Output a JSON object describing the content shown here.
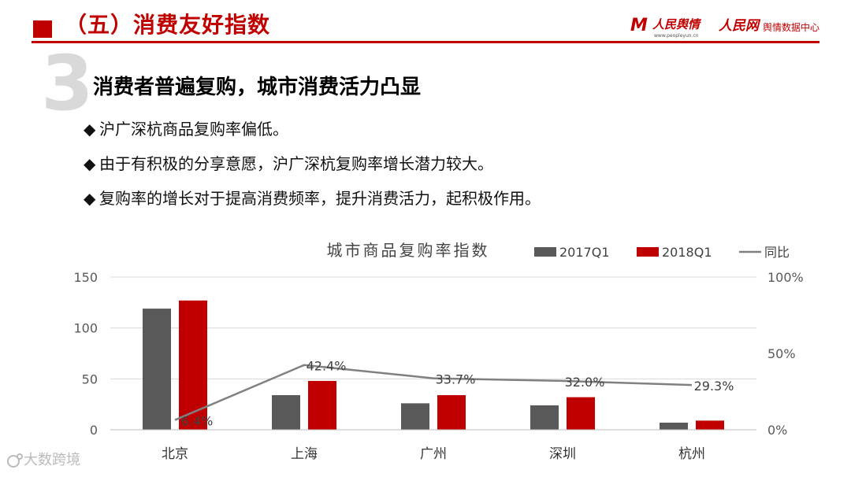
{
  "header": {
    "title": "（五）消费友好指数",
    "logo1_mark": "M",
    "logo1_name": "人民舆情",
    "logo1_url": "www.peopleyun.cn",
    "logo2_name": "人民网",
    "logo2_sub": "舆情数据中心"
  },
  "section": {
    "number": "3",
    "heading": "消费者普遍复购，城市消费活力凸显"
  },
  "bullets": [
    {
      "marker": "◆",
      "text": "沪广深杭商品复购率偏低。"
    },
    {
      "marker": "◆",
      "text": "由于有积极的分享意愿，沪广深杭复购率增长潜力较大。"
    },
    {
      "marker": "◆",
      "text": "复购率的增长对于提高消费频率，提升消费活力，起积极作用。"
    }
  ],
  "watermark": "大数跨境",
  "colors": {
    "accent": "#c00000",
    "series_2017": "#595959",
    "series_2018": "#c00000",
    "line": "#808080",
    "bignum": "#d9d9d9"
  },
  "chart_data": {
    "type": "bar",
    "title": "城市商品复购率指数",
    "categories": [
      "北京",
      "上海",
      "广州",
      "深圳",
      "杭州"
    ],
    "series": [
      {
        "name": "2017Q1",
        "type": "bar",
        "axis": "left",
        "color": "#595959",
        "values": [
          119,
          34,
          26,
          24,
          7
        ]
      },
      {
        "name": "2018Q1",
        "type": "bar",
        "axis": "left",
        "color": "#c00000",
        "values": [
          127,
          48,
          34,
          32,
          9
        ]
      },
      {
        "name": "同比",
        "type": "line",
        "axis": "right",
        "color": "#808080",
        "values": [
          6.4,
          42.4,
          33.7,
          32.0,
          29.3
        ],
        "labels": [
          "6.4%",
          "42.4%",
          "33.7%",
          "32.0%",
          "29.3%"
        ]
      }
    ],
    "y_left": {
      "range": [
        0,
        150
      ],
      "ticks": [
        "0",
        "50",
        "100",
        "150"
      ]
    },
    "y_right": {
      "range": [
        0,
        100
      ],
      "ticks": [
        "0%",
        "50%",
        "100%"
      ]
    },
    "legend_position": "top-right",
    "grid": true
  }
}
